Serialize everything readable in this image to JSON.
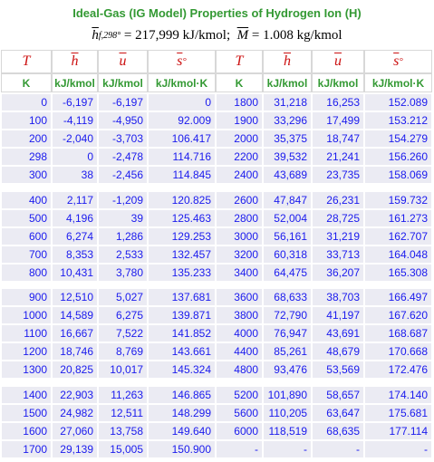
{
  "header": {
    "title": "Ideal-Gas (IG Model) Properties of Hydrogen Ion (H)",
    "formula": {
      "symbol1": "h",
      "sup1": "°",
      "sub1": "f,298",
      "text1": "= 217,999 kJ/kmol;",
      "symbol2": "M",
      "text2": "= 1.008 kg/kmol"
    }
  },
  "table": {
    "symbols": [
      {
        "text": "T"
      },
      {
        "text": "h",
        "overline": true
      },
      {
        "text": "u",
        "overline": true
      },
      {
        "text": "s",
        "overline": true,
        "sup": "°"
      },
      {
        "text": "T"
      },
      {
        "text": "h",
        "overline": true
      },
      {
        "text": "u",
        "overline": true
      },
      {
        "text": "s",
        "overline": true,
        "sup": "°"
      }
    ],
    "units": [
      "K",
      "kJ/kmol",
      "kJ/kmol",
      "kJ/kmol·K",
      "K",
      "kJ/kmol",
      "kJ/kmol",
      "kJ/kmol·K"
    ],
    "groups": [
      [
        [
          "0",
          "-6,197",
          "-6,197",
          "0",
          "1800",
          "31,218",
          "16,253",
          "152.089"
        ],
        [
          "100",
          "-4,119",
          "-4,950",
          "92.009",
          "1900",
          "33,296",
          "17,499",
          "153.212"
        ],
        [
          "200",
          "-2,040",
          "-3,703",
          "106.417",
          "2000",
          "35,375",
          "18,747",
          "154.279"
        ],
        [
          "298",
          "0",
          "-2,478",
          "114.716",
          "2200",
          "39,532",
          "21,241",
          "156.260"
        ],
        [
          "300",
          "38",
          "-2,456",
          "114.845",
          "2400",
          "43,689",
          "23,735",
          "158.069"
        ]
      ],
      [
        [
          "400",
          "2,117",
          "-1,209",
          "120.825",
          "2600",
          "47,847",
          "26,231",
          "159.732"
        ],
        [
          "500",
          "4,196",
          "39",
          "125.463",
          "2800",
          "52,004",
          "28,725",
          "161.273"
        ],
        [
          "600",
          "6,274",
          "1,286",
          "129.253",
          "3000",
          "56,161",
          "31,219",
          "162.707"
        ],
        [
          "700",
          "8,353",
          "2,533",
          "132.457",
          "3200",
          "60,318",
          "33,713",
          "164.048"
        ],
        [
          "800",
          "10,431",
          "3,780",
          "135.233",
          "3400",
          "64,475",
          "36,207",
          "165.308"
        ]
      ],
      [
        [
          "900",
          "12,510",
          "5,027",
          "137.681",
          "3600",
          "68,633",
          "38,703",
          "166.497"
        ],
        [
          "1000",
          "14,589",
          "6,275",
          "139.871",
          "3800",
          "72,790",
          "41,197",
          "167.620"
        ],
        [
          "1100",
          "16,667",
          "7,522",
          "141.852",
          "4000",
          "76,947",
          "43,691",
          "168.687"
        ],
        [
          "1200",
          "18,746",
          "8,769",
          "143.661",
          "4400",
          "85,261",
          "48,679",
          "170.668"
        ],
        [
          "1300",
          "20,825",
          "10,017",
          "145.324",
          "4800",
          "93,476",
          "53,569",
          "172.476"
        ]
      ],
      [
        [
          "1400",
          "22,903",
          "11,263",
          "146.865",
          "5200",
          "101,890",
          "58,657",
          "174.140"
        ],
        [
          "1500",
          "24,982",
          "12,511",
          "148.299",
          "5600",
          "110,205",
          "63,647",
          "175.681"
        ],
        [
          "1600",
          "27,060",
          "13,758",
          "149.640",
          "6000",
          "118,519",
          "68,635",
          "177.114"
        ],
        [
          "1700",
          "29,139",
          "15,005",
          "150.900",
          "-",
          "-",
          "-",
          "-"
        ]
      ]
    ]
  }
}
